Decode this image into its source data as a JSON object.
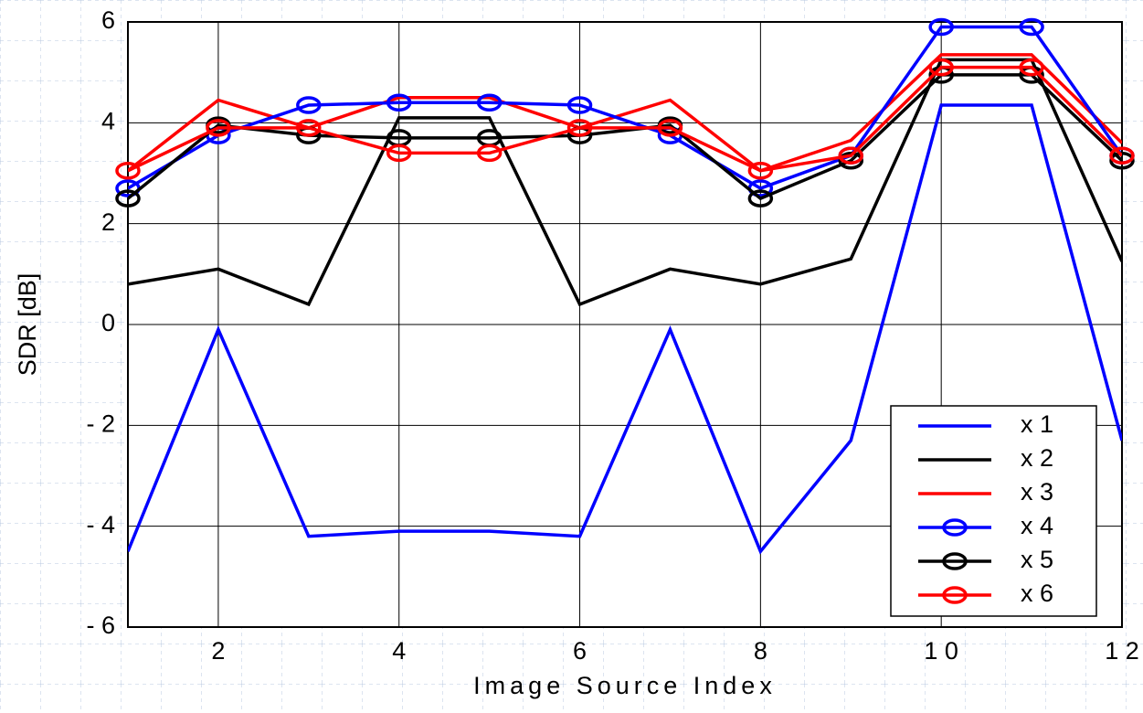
{
  "chart_data": {
    "type": "line",
    "xlabel": "Image Source Index",
    "ylabel": "SDR [dB]",
    "x": [
      1,
      2,
      3,
      4,
      5,
      6,
      7,
      8,
      9,
      10,
      11,
      12
    ],
    "xlim": [
      1,
      12
    ],
    "xticks": [
      2,
      4,
      6,
      8,
      {
        "value": 10,
        "label": "1 0"
      },
      {
        "value": 12,
        "label": "1 2"
      }
    ],
    "ylim": [
      -6,
      6
    ],
    "yticks": [
      {
        "value": -6,
        "label": "- 6"
      },
      {
        "value": -4,
        "label": "- 4"
      },
      {
        "value": -2,
        "label": "- 2"
      },
      0,
      2,
      4,
      6
    ],
    "grid": true,
    "legend": "lower right",
    "series": [
      {
        "name": "x 1",
        "color": "#0000ff",
        "marker": null,
        "values": [
          -4.5,
          -0.1,
          -4.2,
          -4.1,
          -4.1,
          -4.2,
          -0.1,
          -4.5,
          -2.3,
          4.35,
          4.35,
          -2.3
        ]
      },
      {
        "name": "x 2",
        "color": "#000000",
        "marker": null,
        "values": [
          0.8,
          1.1,
          0.4,
          4.1,
          4.1,
          0.4,
          1.1,
          0.8,
          1.3,
          5.25,
          5.25,
          1.25
        ]
      },
      {
        "name": "x 3",
        "color": "#ff0000",
        "marker": null,
        "values": [
          3.05,
          4.45,
          3.9,
          4.5,
          4.5,
          3.9,
          4.45,
          3.05,
          3.65,
          5.35,
          5.35,
          3.6
        ]
      },
      {
        "name": "x 4",
        "color": "#0000ff",
        "marker": "circle",
        "values": [
          2.7,
          3.75,
          4.35,
          4.4,
          4.4,
          4.35,
          3.75,
          2.7,
          3.35,
          5.9,
          5.9,
          3.35
        ]
      },
      {
        "name": "x 5",
        "color": "#000000",
        "marker": "circle",
        "values": [
          2.5,
          3.95,
          3.75,
          3.7,
          3.7,
          3.75,
          3.95,
          2.5,
          3.25,
          4.95,
          4.95,
          3.25
        ]
      },
      {
        "name": "x 6",
        "color": "#ff0000",
        "marker": "circle",
        "values": [
          3.05,
          3.9,
          3.9,
          3.4,
          3.4,
          3.9,
          3.9,
          3.05,
          3.35,
          5.1,
          5.1,
          3.35
        ]
      }
    ]
  }
}
